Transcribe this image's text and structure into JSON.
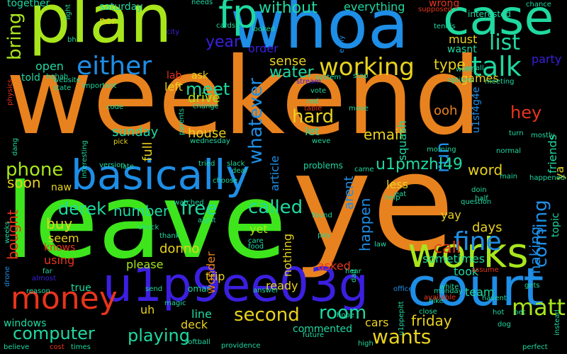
{
  "palette": {
    "orange": "#e8821e",
    "green": "#3ee51c",
    "lime": "#a8e61c",
    "blue": "#1e8ee6",
    "indigo": "#3b1fe0",
    "teal": "#1fd9a0",
    "red": "#e8341c",
    "yellow": "#e8d21e",
    "cyan": "#1cc7d9"
  },
  "words": [
    {
      "text": "weekend",
      "color": "orange"
    },
    {
      "text": "leave",
      "color": "green"
    },
    {
      "text": "ye",
      "color": "orange"
    },
    {
      "text": "plan",
      "color": "lime"
    },
    {
      "text": "whoa",
      "color": "blue"
    },
    {
      "text": "basically",
      "color": "blue"
    },
    {
      "text": "u1p9ee03g",
      "color": "indigo"
    },
    {
      "text": "court",
      "color": "blue"
    },
    {
      "text": "case",
      "color": "teal"
    },
    {
      "text": "works",
      "color": "lime"
    },
    {
      "text": "money",
      "color": "red"
    },
    {
      "text": "fp",
      "color": "teal"
    },
    {
      "text": "either",
      "color": "blue"
    },
    {
      "text": "talk",
      "color": "teal"
    },
    {
      "text": "working",
      "color": "yellow"
    },
    {
      "text": "fine",
      "color": "blue"
    },
    {
      "text": "list",
      "color": "teal"
    },
    {
      "text": "meet",
      "color": "teal"
    },
    {
      "text": "year",
      "color": "indigo"
    },
    {
      "text": "derek",
      "color": "teal"
    },
    {
      "text": "called",
      "color": "teal"
    },
    {
      "text": "free",
      "color": "teal"
    },
    {
      "text": "second",
      "color": "yellow"
    },
    {
      "text": "room",
      "color": "teal"
    },
    {
      "text": "wants",
      "color": "yellow"
    },
    {
      "text": "matt",
      "color": "lime"
    },
    {
      "text": "computer",
      "color": "teal"
    },
    {
      "text": "playing",
      "color": "teal"
    },
    {
      "text": "phone",
      "color": "lime"
    },
    {
      "text": "whatever",
      "color": "blue"
    },
    {
      "text": "coming",
      "color": "blue"
    },
    {
      "text": "bring",
      "color": "lime"
    },
    {
      "text": "run",
      "color": "blue"
    },
    {
      "text": "hard",
      "color": "yellow"
    },
    {
      "text": "email",
      "color": "yellow"
    },
    {
      "text": "u1pmzhl49",
      "color": "teal"
    },
    {
      "text": "word",
      "color": "yellow"
    },
    {
      "text": "hey",
      "color": "red"
    },
    {
      "text": "call",
      "color": "red"
    },
    {
      "text": "making",
      "color": "blue"
    },
    {
      "text": "number",
      "color": "teal"
    },
    {
      "text": "friday",
      "color": "yellow"
    },
    {
      "text": "water",
      "color": "teal"
    },
    {
      "text": "sense",
      "color": "yellow"
    },
    {
      "text": "without",
      "color": "teal"
    },
    {
      "text": "everything",
      "color": "teal"
    },
    {
      "text": "together",
      "color": "teal"
    },
    {
      "text": "saturday",
      "color": "teal"
    },
    {
      "text": "left",
      "color": "yellow"
    },
    {
      "text": "per",
      "color": "yellow"
    },
    {
      "text": "ask",
      "color": "yellow"
    },
    {
      "text": "drive",
      "color": "lime"
    },
    {
      "text": "order",
      "color": "indigo"
    },
    {
      "text": "open",
      "color": "teal"
    },
    {
      "text": "told",
      "color": "teal"
    },
    {
      "text": "lab",
      "color": "red"
    },
    {
      "text": "type",
      "color": "yellow"
    },
    {
      "text": "ooh",
      "color": "orange"
    },
    {
      "text": "sunday",
      "color": "teal"
    },
    {
      "text": "house",
      "color": "yellow"
    },
    {
      "text": "full",
      "color": "yellow"
    },
    {
      "text": "let",
      "color": "teal"
    },
    {
      "text": "soon",
      "color": "yellow"
    },
    {
      "text": "naw",
      "color": "yellow"
    },
    {
      "text": "buy",
      "color": "yellow"
    },
    {
      "text": "bought",
      "color": "red"
    },
    {
      "text": "seem",
      "color": "yellow"
    },
    {
      "text": "knows",
      "color": "red"
    },
    {
      "text": "using",
      "color": "red"
    },
    {
      "text": "please",
      "color": "lime"
    },
    {
      "text": "donno",
      "color": "yellow"
    },
    {
      "text": "yet",
      "color": "lime"
    },
    {
      "text": "asked",
      "color": "red"
    },
    {
      "text": "happen",
      "color": "blue"
    },
    {
      "text": "sometimes",
      "color": "teal"
    },
    {
      "text": "took",
      "color": "teal"
    },
    {
      "text": "days",
      "color": "yellow"
    },
    {
      "text": "yay",
      "color": "yellow"
    },
    {
      "text": "team",
      "color": "teal"
    },
    {
      "text": "true",
      "color": "teal"
    },
    {
      "text": "windows",
      "color": "teal"
    },
    {
      "text": "trip",
      "color": "yellow"
    },
    {
      "text": "ready",
      "color": "yellow"
    },
    {
      "text": "nothing",
      "color": "yellow"
    },
    {
      "text": "line",
      "color": "teal"
    },
    {
      "text": "deck",
      "color": "yellow"
    },
    {
      "text": "commented",
      "color": "teal"
    },
    {
      "text": "cars",
      "color": "yellow"
    },
    {
      "text": "friends",
      "color": "teal"
    },
    {
      "text": "party",
      "color": "indigo"
    },
    {
      "text": "must",
      "color": "yellow"
    },
    {
      "text": "wasnt",
      "color": "teal"
    },
    {
      "text": "games",
      "color": "yellow"
    },
    {
      "text": "wrong",
      "color": "red"
    },
    {
      "text": "squash",
      "color": "teal"
    },
    {
      "text": "article",
      "color": "blue"
    },
    {
      "text": "arent",
      "color": "blue"
    },
    {
      "text": "less",
      "color": "yellow"
    },
    {
      "text": "topic",
      "color": "teal"
    },
    {
      "text": "ya",
      "color": "yellow"
    },
    {
      "text": "u1sf4g4e",
      "color": "blue"
    },
    {
      "text": "uh",
      "color": "yellow"
    },
    {
      "text": "interested",
      "color": "teal"
    },
    {
      "text": "problems",
      "color": "teal"
    },
    {
      "text": "wonder",
      "color": "orange"
    },
    {
      "text": "omar",
      "color": "teal"
    },
    {
      "text": "cards",
      "color": "teal"
    },
    {
      "text": "needs",
      "color": "teal"
    },
    {
      "text": "looked",
      "color": "teal"
    },
    {
      "text": "early",
      "color": "blue"
    },
    {
      "text": "system",
      "color": "teal"
    },
    {
      "text": "stop",
      "color": "teal"
    },
    {
      "text": "hahah",
      "color": "teal"
    },
    {
      "text": "website",
      "color": "teal"
    },
    {
      "text": "important",
      "color": "teal"
    },
    {
      "text": "code",
      "color": "teal"
    },
    {
      "text": "change",
      "color": "teal"
    },
    {
      "text": "pick",
      "color": "yellow"
    },
    {
      "text": "tried",
      "color": "teal"
    },
    {
      "text": "slack",
      "color": "teal"
    },
    {
      "text": "late",
      "color": "teal"
    },
    {
      "text": "version",
      "color": "teal"
    },
    {
      "text": "choose",
      "color": "teal"
    },
    {
      "text": "red",
      "color": "teal"
    },
    {
      "text": "move",
      "color": "teal"
    },
    {
      "text": "turn",
      "color": "teal"
    },
    {
      "text": "thank",
      "color": "teal"
    },
    {
      "text": "far",
      "color": "teal"
    },
    {
      "text": "send",
      "color": "teal"
    },
    {
      "text": "office",
      "color": "blue"
    },
    {
      "text": "white",
      "color": "teal"
    },
    {
      "text": "hike",
      "color": "teal"
    },
    {
      "text": "havent",
      "color": "teal"
    },
    {
      "text": "available",
      "color": "red"
    },
    {
      "text": "hot",
      "color": "teal"
    },
    {
      "text": "bet",
      "color": "teal"
    },
    {
      "text": "dog",
      "color": "teal"
    },
    {
      "text": "gets",
      "color": "teal"
    },
    {
      "text": "monday",
      "color": "teal"
    },
    {
      "text": "found",
      "color": "teal"
    },
    {
      "text": "help",
      "color": "teal"
    },
    {
      "text": "eat",
      "color": "teal"
    },
    {
      "text": "half",
      "color": "teal"
    },
    {
      "text": "pay",
      "color": "teal"
    },
    {
      "text": "answer",
      "color": "teal"
    },
    {
      "text": "close",
      "color": "teal"
    },
    {
      "text": "hope",
      "color": "teal"
    },
    {
      "text": "high",
      "color": "teal"
    },
    {
      "text": "cost",
      "color": "red"
    },
    {
      "text": "times",
      "color": "teal"
    },
    {
      "text": "believe",
      "color": "teal"
    },
    {
      "text": "softball",
      "color": "teal"
    },
    {
      "text": "providence",
      "color": "teal"
    },
    {
      "text": "future",
      "color": "teal"
    },
    {
      "text": "perfect",
      "color": "teal"
    },
    {
      "text": "instead",
      "color": "teal"
    },
    {
      "text": "reason",
      "color": "teal"
    },
    {
      "text": "physics",
      "color": "red"
    },
    {
      "text": "tennis",
      "color": "teal"
    },
    {
      "text": "chance",
      "color": "teal"
    },
    {
      "text": "supposed",
      "color": "red"
    },
    {
      "text": "wont",
      "color": "teal"
    },
    {
      "text": "small",
      "color": "teal"
    },
    {
      "text": "meeting",
      "color": "teal"
    },
    {
      "text": "options",
      "color": "teal"
    },
    {
      "text": "mostly",
      "color": "teal"
    },
    {
      "text": "normal",
      "color": "teal"
    },
    {
      "text": "morning",
      "color": "teal"
    },
    {
      "text": "main",
      "color": "teal"
    },
    {
      "text": "happened",
      "color": "teal"
    },
    {
      "text": "doin",
      "color": "teal"
    },
    {
      "text": "question",
      "color": "teal"
    },
    {
      "text": "interesting",
      "color": "teal"
    },
    {
      "text": "dang",
      "color": "teal"
    },
    {
      "text": "wednesday",
      "color": "teal"
    },
    {
      "text": "watched",
      "color": "teal"
    },
    {
      "text": "aight",
      "color": "teal"
    },
    {
      "text": "deal",
      "color": "teal"
    },
    {
      "text": "came",
      "color": "teal"
    },
    {
      "text": "care",
      "color": "teal"
    },
    {
      "text": "food",
      "color": "teal"
    },
    {
      "text": "law",
      "color": "teal"
    },
    {
      "text": "hear",
      "color": "teal"
    },
    {
      "text": "check",
      "color": "teal"
    },
    {
      "text": "drone",
      "color": "blue"
    },
    {
      "text": "almost",
      "color": "indigo"
    },
    {
      "text": "weeks",
      "color": "teal"
    },
    {
      "text": "city",
      "color": "indigo"
    },
    {
      "text": "light",
      "color": "teal"
    },
    {
      "text": "bh",
      "color": "teal"
    },
    {
      "text": "state",
      "color": "teal"
    },
    {
      "text": "stream",
      "color": "indigo"
    },
    {
      "text": "vote",
      "color": "teal"
    },
    {
      "text": "table",
      "color": "red"
    },
    {
      "text": "weve",
      "color": "teal"
    },
    {
      "text": "parents",
      "color": "teal"
    },
    {
      "text": "magic",
      "color": "teal"
    },
    {
      "text": "dad",
      "color": "teal"
    },
    {
      "text": "u1ppepitt",
      "color": "teal"
    },
    {
      "text": "assume",
      "color": "red"
    }
  ]
}
